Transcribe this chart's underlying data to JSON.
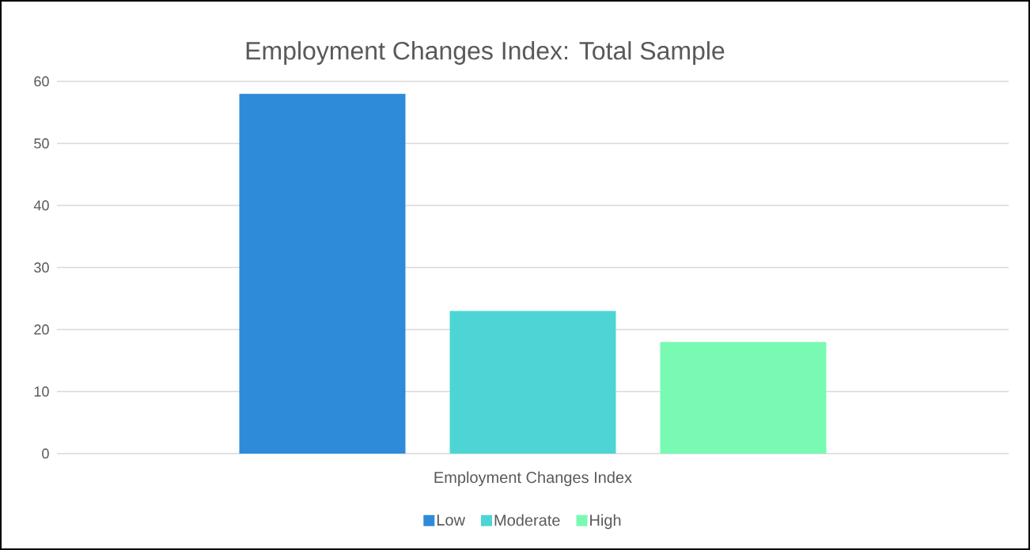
{
  "chart_data": {
    "type": "bar",
    "title": "Employment Changes Index: Total Sample",
    "categories": [
      "Employment Changes Index"
    ],
    "series": [
      {
        "name": "Low",
        "color": "#2e8bd9",
        "values": [
          58
        ]
      },
      {
        "name": "Moderate",
        "color": "#4dd5d5",
        "values": [
          23
        ]
      },
      {
        "name": "High",
        "color": "#78fab2",
        "values": [
          18
        ]
      }
    ],
    "ylim": [
      0,
      60
    ],
    "yticks": [
      0,
      10,
      20,
      30,
      40,
      50,
      60
    ],
    "grid": "y",
    "legend": "bottom"
  }
}
